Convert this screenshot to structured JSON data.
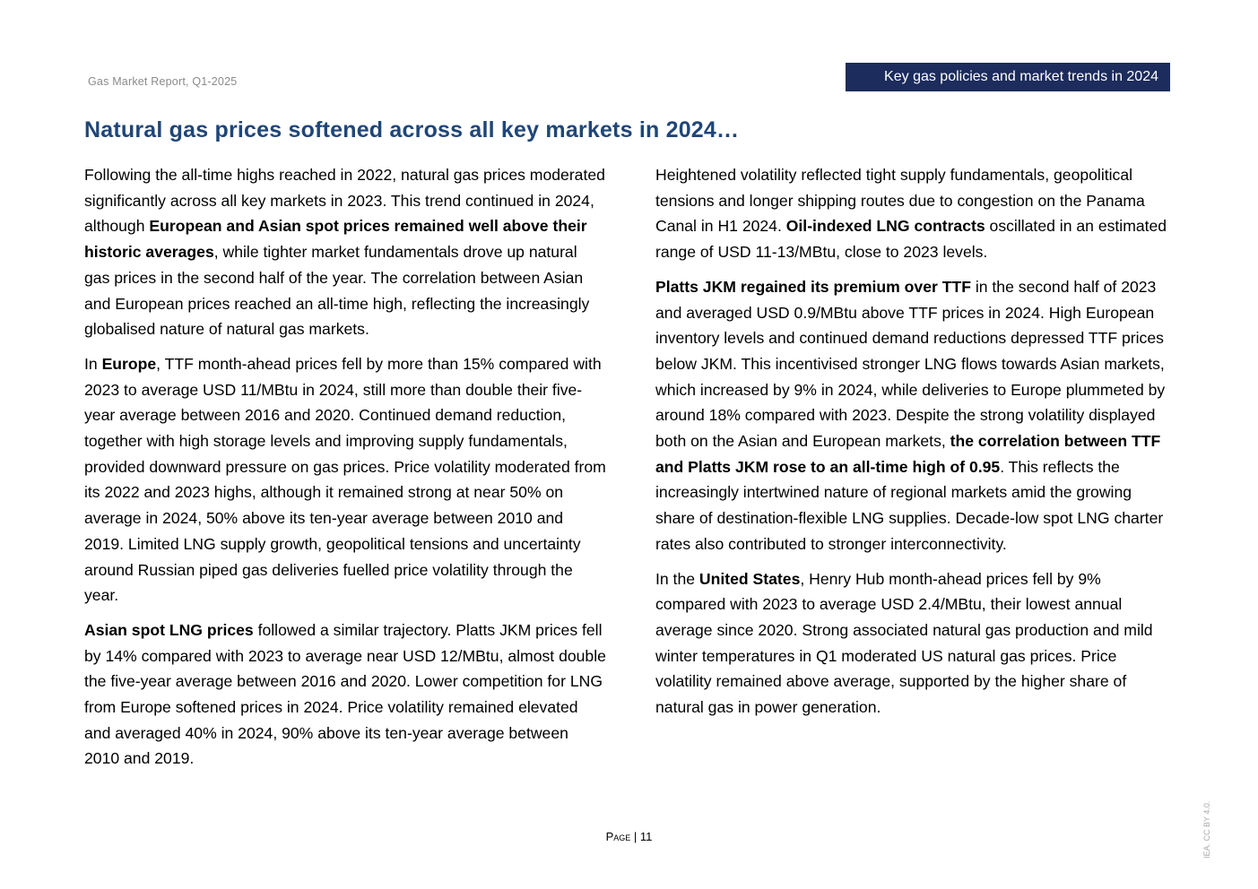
{
  "header": {
    "report": "Gas Market Report, Q1-2025",
    "section": "Key gas policies and market trends in 2024"
  },
  "title": "Natural gas prices softened across all key markets in 2024…",
  "columns": [
    [
      [
        {
          "text": "Following the all-time highs reached in 2022, natural gas prices moderated significantly across all key markets in 2023. This trend continued in 2024, although ",
          "bold": false
        },
        {
          "text": "European and Asian spot prices remained well above their historic averages",
          "bold": true
        },
        {
          "text": ", while tighter market fundamentals drove up natural gas prices in the second half of the year. The correlation between Asian and European prices reached an all-time high, reflecting the increasingly globalised nature of natural gas markets.",
          "bold": false
        }
      ],
      [
        {
          "text": "In ",
          "bold": false
        },
        {
          "text": "Europe",
          "bold": true
        },
        {
          "text": ", TTF month-ahead prices fell by more than 15% compared with 2023 to average USD 11/MBtu in 2024, still more than double their five-year average between 2016 and 2020. Continued demand reduction, together with high storage levels and improving supply fundamentals, provided downward pressure on gas prices. Price volatility moderated from its 2022 and 2023 highs, although it remained strong at near 50% on average in 2024, 50% above its ten-year average between 2010 and 2019. Limited LNG supply growth, geopolitical tensions and uncertainty around Russian piped gas deliveries fuelled price volatility through the year.",
          "bold": false
        }
      ],
      [
        {
          "text": "Asian spot LNG prices",
          "bold": true
        },
        {
          "text": " followed a similar trajectory. Platts JKM prices fell by 14% compared with 2023 to average near USD 12/MBtu, almost double the five-year average between 2016 and 2020. Lower competition for LNG from Europe softened prices in 2024. Price volatility remained elevated and averaged 40% in 2024, 90% above its ten-year average between 2010 and 2019.",
          "bold": false
        }
      ]
    ],
    [
      [
        {
          "text": "Heightened volatility reflected tight supply fundamentals, geopolitical tensions and longer shipping routes due to congestion on the Panama Canal in H1 2024. ",
          "bold": false
        },
        {
          "text": "Oil-indexed LNG contracts",
          "bold": true
        },
        {
          "text": " oscillated in an estimated range of USD 11-13/MBtu, close to 2023 levels.",
          "bold": false
        }
      ],
      [
        {
          "text": "Platts JKM regained its premium over TTF",
          "bold": true
        },
        {
          "text": " in the second half of 2023 and averaged USD 0.9/MBtu above TTF prices in 2024. High European inventory levels and continued demand reductions depressed TTF prices below JKM. This incentivised stronger LNG flows towards Asian markets, which increased by 9% in 2024, while deliveries to Europe plummeted by around 18% compared with 2023. Despite the strong volatility displayed both on the Asian and European markets, ",
          "bold": false
        },
        {
          "text": "the correlation between TTF and Platts JKM rose to an all-time high of 0.95",
          "bold": true
        },
        {
          "text": ". This reflects the increasingly intertwined nature of regional markets amid the growing share of destination-flexible LNG supplies. Decade-low spot LNG charter rates also contributed to stronger interconnectivity.",
          "bold": false
        }
      ],
      [
        {
          "text": "In the ",
          "bold": false
        },
        {
          "text": "United States",
          "bold": true
        },
        {
          "text": ", Henry Hub month-ahead prices fell by 9% compared with 2023 to average USD 2.4/MBtu, their lowest annual average since 2020. Strong associated natural gas production and mild winter temperatures in Q1 moderated US natural gas prices. Price volatility remained above average, supported by the higher share of natural gas in power generation.",
          "bold": false
        }
      ]
    ]
  ],
  "footer": {
    "page": "Page | 11",
    "license": "IEA. CC BY 4.0."
  }
}
